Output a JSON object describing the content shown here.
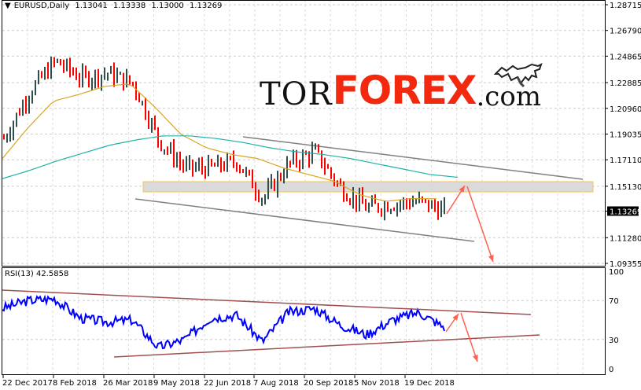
{
  "header": {
    "symbol_timeframe": "EURUSD,Daily",
    "open": "1.13041",
    "high": "1.13338",
    "low": "1.13000",
    "close": "1.13269"
  },
  "rsi_header": {
    "label": "RSI(13) 42.5858"
  },
  "logo": {
    "part1": "TOR",
    "part2": "FOREX",
    "part3": ".com"
  },
  "colors": {
    "bull_bar": "#2f4f4f",
    "bear_bar": "#ff0000",
    "ma_fast": "#daa520",
    "ma_slow": "#20b2aa",
    "channel": "#808080",
    "zone_border": "#f0c040",
    "zone_fill": "#d8d8d8",
    "arrow": "#ff6050",
    "rsi_line": "#0000ff",
    "rsi_trend": "#a05050",
    "logo_red": "#f2290f"
  },
  "chart_data": [
    {
      "type": "line",
      "title": "EURUSD,Daily",
      "subtitle": "O 1.13041 H 1.13338 L 1.13000 C 1.13269",
      "xlabel": "",
      "ylabel": "",
      "ylim": [
        1.09355,
        1.28715
      ],
      "y_ticks": [
        "1.28715",
        "1.26790",
        "1.24865",
        "1.22885",
        "1.20960",
        "1.19035",
        "1.17110",
        "1.15130",
        "1.13269",
        "1.11280",
        "1.09355"
      ],
      "current_price_label": "1.13269",
      "x_ticks": [
        "22 Dec 2017",
        "8 Feb 2018",
        "26 Mar 2018",
        "9 May 2018",
        "22 Jun 2018",
        "7 Aug 2018",
        "20 Sep 2018",
        "5 Nov 2018",
        "19 Dec 2018"
      ],
      "grid": true,
      "legend": "none",
      "series": [
        {
          "name": "Price (OHLC bars, approx close)",
          "x": [
            "22 Dec 2017",
            "15 Jan 2018",
            "8 Feb 2018",
            "1 Mar 2018",
            "26 Mar 2018",
            "17 Apr 2018",
            "9 May 2018",
            "1 Jun 2018",
            "22 Jun 2018",
            "15 Jul 2018",
            "7 Aug 2018",
            "29 Aug 2018",
            "20 Sep 2018",
            "12 Oct 2018",
            "5 Nov 2018",
            "28 Nov 2018",
            "19 Dec 2018",
            "10 Jan 2019"
          ],
          "values": [
            1.187,
            1.222,
            1.245,
            1.232,
            1.236,
            1.228,
            1.185,
            1.165,
            1.165,
            1.17,
            1.142,
            1.168,
            1.177,
            1.15,
            1.135,
            1.138,
            1.14,
            1.1327
          ]
        },
        {
          "name": "MA fast (gold)",
          "values": [
            1.172,
            1.195,
            1.215,
            1.22,
            1.226,
            1.228,
            1.21,
            1.19,
            1.18,
            1.175,
            1.172,
            1.165,
            1.16,
            1.155,
            1.145,
            1.14,
            1.142,
            1.142
          ]
        },
        {
          "name": "MA slow (teal)",
          "values": [
            1.157,
            1.163,
            1.17,
            1.176,
            1.182,
            1.186,
            1.189,
            1.189,
            1.187,
            1.184,
            1.18,
            1.177,
            1.175,
            1.172,
            1.168,
            1.164,
            1.16,
            1.158
          ]
        }
      ],
      "annotations": [
        {
          "type": "channel_upper",
          "from": [
            "~5 Aug 2018",
            1.188
          ],
          "to": [
            "~Mar 2019",
            1.157
          ]
        },
        {
          "type": "channel_lower",
          "from": [
            "~9 May 2018",
            1.143
          ],
          "to": [
            "~Feb 2019",
            1.115
          ]
        },
        {
          "type": "resistance_zone",
          "ymin": 1.144,
          "ymax": 1.152
        },
        {
          "type": "arrow_up",
          "from": 1.132,
          "to": 1.15
        },
        {
          "type": "arrow_down",
          "from": 1.15,
          "to": 1.096
        }
      ]
    },
    {
      "type": "line",
      "title": "RSI(13) 42.5858",
      "ylim": [
        0,
        100
      ],
      "y_ticks": [
        "100",
        "70",
        "30",
        "0"
      ],
      "grid": true,
      "series": [
        {
          "name": "RSI(13)",
          "x": [
            "22 Dec 2017",
            "15 Jan 2018",
            "8 Feb 2018",
            "1 Mar 2018",
            "26 Mar 2018",
            "17 Apr 2018",
            "9 May 2018",
            "1 Jun 2018",
            "22 Jun 2018",
            "15 Jul 2018",
            "7 Aug 2018",
            "29 Aug 2018",
            "20 Sep 2018",
            "12 Oct 2018",
            "5 Nov 2018",
            "28 Nov 2018",
            "19 Dec 2018",
            "10 Jan 2019"
          ],
          "values": [
            62,
            70,
            72,
            52,
            48,
            50,
            22,
            30,
            52,
            55,
            28,
            58,
            62,
            45,
            35,
            50,
            58,
            42.59
          ]
        }
      ],
      "annotations": [
        {
          "type": "trendline_upper",
          "from": 78,
          "to": 58
        },
        {
          "type": "trendline_lower",
          "from": 15,
          "to": 37
        },
        {
          "type": "arrow_up",
          "from": 42,
          "to": 56
        },
        {
          "type": "arrow_down",
          "from": 56,
          "to": 12
        }
      ]
    }
  ]
}
